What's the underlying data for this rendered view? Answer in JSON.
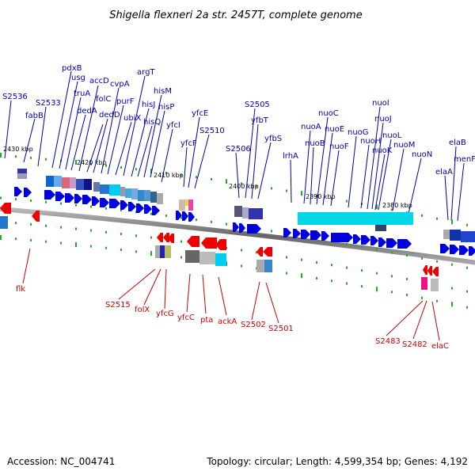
{
  "header": {
    "title": "Shigella flexneri 2a str. 2457T, complete genome"
  },
  "footer": {
    "accession": "Accession: NC_004741",
    "topology": "Topology: circular; Length: 4,599,354 bp; Genes: 4,192"
  },
  "colors": {
    "forward": "#0000dd",
    "reverse": "#ee0000",
    "top_label": "#0000aa",
    "bottom_label": "#cc0000",
    "backbone": "#888888",
    "tick": "#22aa22",
    "cyan_block": "#00d8e8"
  },
  "chart_data": {
    "type": "genome-map",
    "kbp_marks": [
      "2430 kbp",
      "2420 kbp",
      "2410 kbp",
      "2400 kbp",
      "2390 kbp",
      "2380 kbp"
    ],
    "top_genes": [
      "S2536",
      "fabB",
      "S2533",
      "pdxB",
      "usg",
      "truA",
      "dedA",
      "accD",
      "folC",
      "dedD",
      "cvpA",
      "purF",
      "ubiX",
      "argT",
      "hisJ",
      "hisQ",
      "hisM",
      "hisP",
      "yfcI",
      "yfcF",
      "yfcE",
      "S2510",
      "S2506",
      "S2505",
      "yfbT",
      "yfbS",
      "lrhA",
      "nuoA",
      "nuoB",
      "nuoC",
      "nuoE",
      "nuoF",
      "nuoG",
      "nuoH",
      "nuoI",
      "nuoJ",
      "nuoK",
      "nuoL",
      "nuoM",
      "nuoN",
      "elaA",
      "elaB",
      "menF"
    ],
    "bottom_genes": [
      "flk",
      "S2515",
      "folX",
      "yfcG",
      "yfcC",
      "pta",
      "ackA",
      "S2502",
      "S2501",
      "S2483",
      "S2482",
      "elaC"
    ]
  }
}
